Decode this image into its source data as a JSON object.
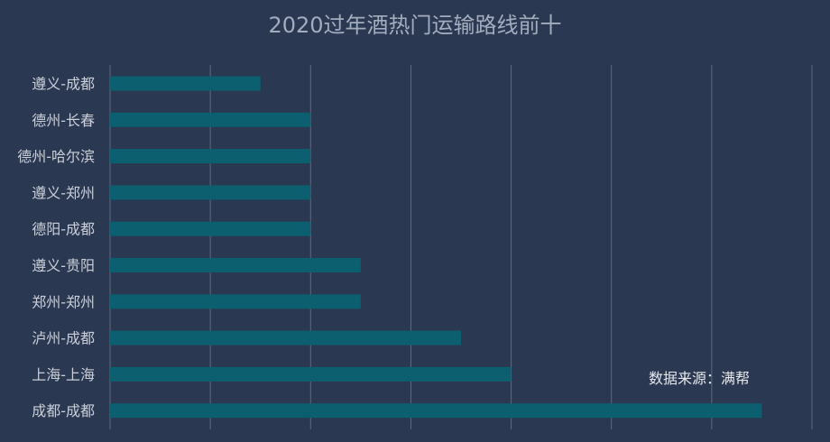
{
  "chart_data": {
    "type": "bar",
    "orientation": "horizontal",
    "title": "2020过年酒热门运输路线前十",
    "categories": [
      "遵义-成都",
      "德州-长春",
      "德州-哈尔滨",
      "遵义-郑州",
      "德阳-成都",
      "遵义-贵阳",
      "郑州-郑州",
      "泸州-成都",
      "上海-上海",
      "成都-成都"
    ],
    "values": [
      1.5,
      2,
      2,
      2,
      2,
      2.5,
      2.5,
      3.5,
      4,
      6.5
    ],
    "xlim": [
      0,
      7
    ],
    "grid": true,
    "show_x_tick_labels": false,
    "bar_color": "#0b5f6e",
    "annotation": "数据来源：满帮"
  },
  "colors": {
    "background": "#2b3851",
    "title": "#a3acbd",
    "tick_label": "#c9ced8",
    "grid": "#8a93a5"
  }
}
